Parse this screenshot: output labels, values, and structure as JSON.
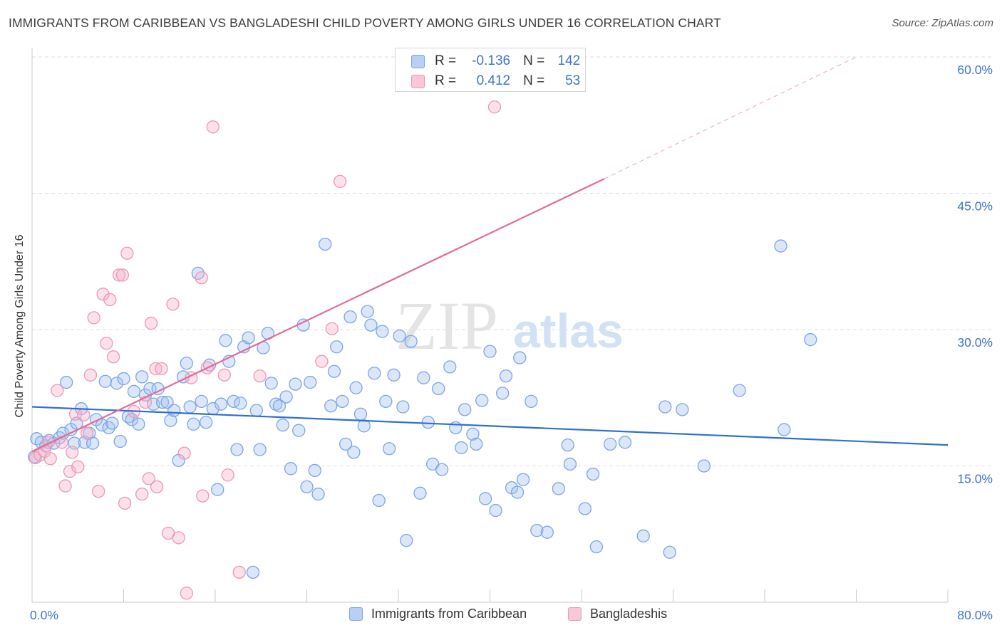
{
  "title": "IMMIGRANTS FROM CARIBBEAN VS BANGLADESHI CHILD POVERTY AMONG GIRLS UNDER 16 CORRELATION CHART",
  "source": "Source: ZipAtlas.com",
  "watermark": {
    "part1": "ZIP",
    "part2": "atlas"
  },
  "legend": {
    "r_label": "R =",
    "n_label": "N =",
    "rows": [
      {
        "r": "-0.136",
        "n": "142",
        "color": "#7aa6e6"
      },
      {
        "r": "0.412",
        "n": "53",
        "color": "#ee97b3"
      }
    ]
  },
  "bottom_legend": [
    {
      "label": "Immigrants from Caribbean",
      "color": "#7aa6e6"
    },
    {
      "label": "Bangladeshis",
      "color": "#ee97b3"
    }
  ],
  "chart_data": {
    "type": "scatter",
    "title": "IMMIGRANTS FROM CARIBBEAN VS BANGLADESHI CHILD POVERTY AMONG GIRLS UNDER 16 CORRELATION CHART",
    "xlabel": "",
    "ylabel": "Child Poverty Among Girls Under 16",
    "xlim": [
      0,
      80
    ],
    "ylim": [
      0,
      60
    ],
    "x_tick_labels": [
      {
        "value": 0,
        "label": "0.0%"
      },
      {
        "value": 80,
        "label": "80.0%"
      }
    ],
    "y_tick_labels": [
      {
        "value": 15,
        "label": "15.0%"
      },
      {
        "value": 30,
        "label": "30.0%"
      },
      {
        "value": 45,
        "label": "45.0%"
      },
      {
        "value": 60,
        "label": "60.0%"
      }
    ],
    "grid": true,
    "legend_position": "top-center",
    "series": [
      {
        "name": "Immigrants from Caribbean",
        "color": "#7aa6e6",
        "points": [
          [
            0.2,
            16.0
          ],
          [
            0.4,
            18.0
          ],
          [
            0.8,
            17.6
          ],
          [
            1.2,
            17.2
          ],
          [
            1.5,
            17.8
          ],
          [
            1.9,
            17.5
          ],
          [
            2.4,
            18.1
          ],
          [
            2.7,
            18.6
          ],
          [
            3.0,
            24.2
          ],
          [
            3.4,
            19.0
          ],
          [
            3.7,
            17.5
          ],
          [
            3.9,
            19.7
          ],
          [
            4.3,
            21.3
          ],
          [
            4.6,
            17.6
          ],
          [
            5.0,
            18.6
          ],
          [
            5.3,
            17.5
          ],
          [
            5.6,
            20.1
          ],
          [
            6.1,
            19.5
          ],
          [
            6.4,
            24.3
          ],
          [
            6.7,
            19.2
          ],
          [
            7.0,
            19.7
          ],
          [
            7.4,
            24.1
          ],
          [
            7.7,
            17.7
          ],
          [
            8.0,
            24.6
          ],
          [
            8.4,
            20.4
          ],
          [
            8.7,
            20.1
          ],
          [
            8.9,
            23.2
          ],
          [
            9.3,
            19.6
          ],
          [
            9.6,
            24.8
          ],
          [
            9.9,
            22.8
          ],
          [
            10.3,
            23.5
          ],
          [
            10.6,
            21.8
          ],
          [
            11.0,
            23.5
          ],
          [
            11.4,
            22.0
          ],
          [
            11.8,
            22.0
          ],
          [
            12.1,
            20.0
          ],
          [
            12.4,
            21.1
          ],
          [
            12.8,
            15.6
          ],
          [
            13.2,
            24.8
          ],
          [
            13.5,
            26.3
          ],
          [
            13.8,
            21.5
          ],
          [
            14.1,
            19.6
          ],
          [
            14.5,
            36.2
          ],
          [
            14.8,
            22.1
          ],
          [
            15.2,
            19.8
          ],
          [
            15.5,
            26.1
          ],
          [
            15.8,
            21.3
          ],
          [
            16.2,
            12.4
          ],
          [
            16.5,
            21.8
          ],
          [
            16.9,
            28.8
          ],
          [
            17.2,
            26.5
          ],
          [
            17.6,
            22.1
          ],
          [
            17.9,
            16.8
          ],
          [
            18.2,
            21.9
          ],
          [
            18.5,
            28.1
          ],
          [
            18.9,
            29.1
          ],
          [
            19.3,
            3.3
          ],
          [
            19.6,
            21.1
          ],
          [
            19.9,
            16.8
          ],
          [
            20.2,
            28.0
          ],
          [
            20.6,
            29.6
          ],
          [
            20.9,
            24.1
          ],
          [
            21.3,
            21.8
          ],
          [
            21.6,
            21.6
          ],
          [
            21.9,
            19.5
          ],
          [
            22.2,
            22.6
          ],
          [
            22.6,
            14.7
          ],
          [
            23.0,
            24.0
          ],
          [
            23.3,
            18.9
          ],
          [
            23.7,
            30.5
          ],
          [
            24.0,
            12.7
          ],
          [
            24.3,
            24.2
          ],
          [
            24.7,
            14.5
          ],
          [
            25.0,
            11.9
          ],
          [
            25.6,
            39.4
          ],
          [
            26.1,
            21.6
          ],
          [
            26.4,
            25.4
          ],
          [
            26.6,
            28.1
          ],
          [
            27.1,
            22.1
          ],
          [
            27.4,
            17.4
          ],
          [
            27.8,
            31.4
          ],
          [
            28.1,
            16.5
          ],
          [
            28.3,
            23.6
          ],
          [
            28.7,
            20.7
          ],
          [
            29.0,
            19.4
          ],
          [
            29.3,
            32.0
          ],
          [
            29.6,
            30.5
          ],
          [
            29.9,
            25.2
          ],
          [
            30.3,
            11.2
          ],
          [
            30.6,
            29.8
          ],
          [
            30.9,
            22.1
          ],
          [
            31.2,
            16.9
          ],
          [
            31.6,
            25.0
          ],
          [
            32.1,
            29.3
          ],
          [
            32.4,
            21.5
          ],
          [
            32.7,
            6.8
          ],
          [
            33.1,
            28.7
          ],
          [
            33.9,
            12.0
          ],
          [
            34.2,
            24.7
          ],
          [
            34.6,
            19.8
          ],
          [
            35.0,
            15.2
          ],
          [
            35.5,
            23.5
          ],
          [
            35.8,
            14.6
          ],
          [
            36.5,
            25.9
          ],
          [
            37.0,
            19.2
          ],
          [
            37.5,
            17.0
          ],
          [
            37.8,
            21.2
          ],
          [
            38.5,
            18.5
          ],
          [
            38.8,
            17.4
          ],
          [
            39.3,
            22.2
          ],
          [
            39.6,
            11.4
          ],
          [
            40.0,
            27.6
          ],
          [
            40.5,
            10.1
          ],
          [
            41.1,
            23.0
          ],
          [
            41.4,
            24.9
          ],
          [
            41.9,
            12.6
          ],
          [
            42.4,
            12.1
          ],
          [
            42.6,
            26.9
          ],
          [
            42.9,
            13.5
          ],
          [
            43.6,
            22.1
          ],
          [
            44.1,
            7.9
          ],
          [
            45.0,
            7.7
          ],
          [
            46.0,
            12.5
          ],
          [
            46.8,
            17.3
          ],
          [
            47.0,
            15.2
          ],
          [
            48.3,
            10.3
          ],
          [
            49.0,
            14.1
          ],
          [
            49.3,
            6.1
          ],
          [
            50.5,
            17.4
          ],
          [
            51.8,
            17.6
          ],
          [
            53.4,
            7.3
          ],
          [
            55.3,
            21.5
          ],
          [
            55.7,
            5.5
          ],
          [
            56.8,
            21.2
          ],
          [
            58.7,
            15.0
          ],
          [
            61.8,
            23.3
          ],
          [
            65.4,
            39.2
          ],
          [
            65.7,
            19.0
          ],
          [
            68.0,
            28.9
          ]
        ]
      },
      {
        "name": "Bangladeshis",
        "color": "#ee97b3",
        "points": [
          [
            0.3,
            15.9
          ],
          [
            0.7,
            16.2
          ],
          [
            1.1,
            16.6
          ],
          [
            1.4,
            17.6
          ],
          [
            1.6,
            15.8
          ],
          [
            2.2,
            23.3
          ],
          [
            2.6,
            17.6
          ],
          [
            2.9,
            12.8
          ],
          [
            3.3,
            14.4
          ],
          [
            3.5,
            16.5
          ],
          [
            3.8,
            20.7
          ],
          [
            4.0,
            14.9
          ],
          [
            4.5,
            20.6
          ],
          [
            4.8,
            18.6
          ],
          [
            5.1,
            25.0
          ],
          [
            5.4,
            31.3
          ],
          [
            5.8,
            12.2
          ],
          [
            6.2,
            33.9
          ],
          [
            6.5,
            28.5
          ],
          [
            6.8,
            33.3
          ],
          [
            7.1,
            27.0
          ],
          [
            7.6,
            36.0
          ],
          [
            7.9,
            36.0
          ],
          [
            8.1,
            10.9
          ],
          [
            8.3,
            38.4
          ],
          [
            8.9,
            21.0
          ],
          [
            9.6,
            11.9
          ],
          [
            9.9,
            22.0
          ],
          [
            10.2,
            13.6
          ],
          [
            10.4,
            30.7
          ],
          [
            10.8,
            25.7
          ],
          [
            10.9,
            12.7
          ],
          [
            11.3,
            25.7
          ],
          [
            11.9,
            7.6
          ],
          [
            12.3,
            32.8
          ],
          [
            12.8,
            7.1
          ],
          [
            13.3,
            16.4
          ],
          [
            13.5,
            1.0
          ],
          [
            13.9,
            24.7
          ],
          [
            14.8,
            35.7
          ],
          [
            14.9,
            11.7
          ],
          [
            15.3,
            25.8
          ],
          [
            15.8,
            52.3
          ],
          [
            16.8,
            25.0
          ],
          [
            17.1,
            14.0
          ],
          [
            18.1,
            3.3
          ],
          [
            19.9,
            24.9
          ],
          [
            25.3,
            26.5
          ],
          [
            26.2,
            30.1
          ],
          [
            26.9,
            46.3
          ],
          [
            40.4,
            54.5
          ]
        ]
      }
    ],
    "trend_lines": [
      {
        "series": "Immigrants from Caribbean",
        "color": "#2f6fd0",
        "from": [
          0,
          21.5
        ],
        "to": [
          80,
          17.3
        ]
      },
      {
        "series": "Bangladeshis",
        "color": "#e46a97",
        "from": [
          0,
          16.6
        ],
        "to": [
          50,
          46.6
        ],
        "dashed_extension_to": [
          72,
          60
        ]
      }
    ]
  }
}
